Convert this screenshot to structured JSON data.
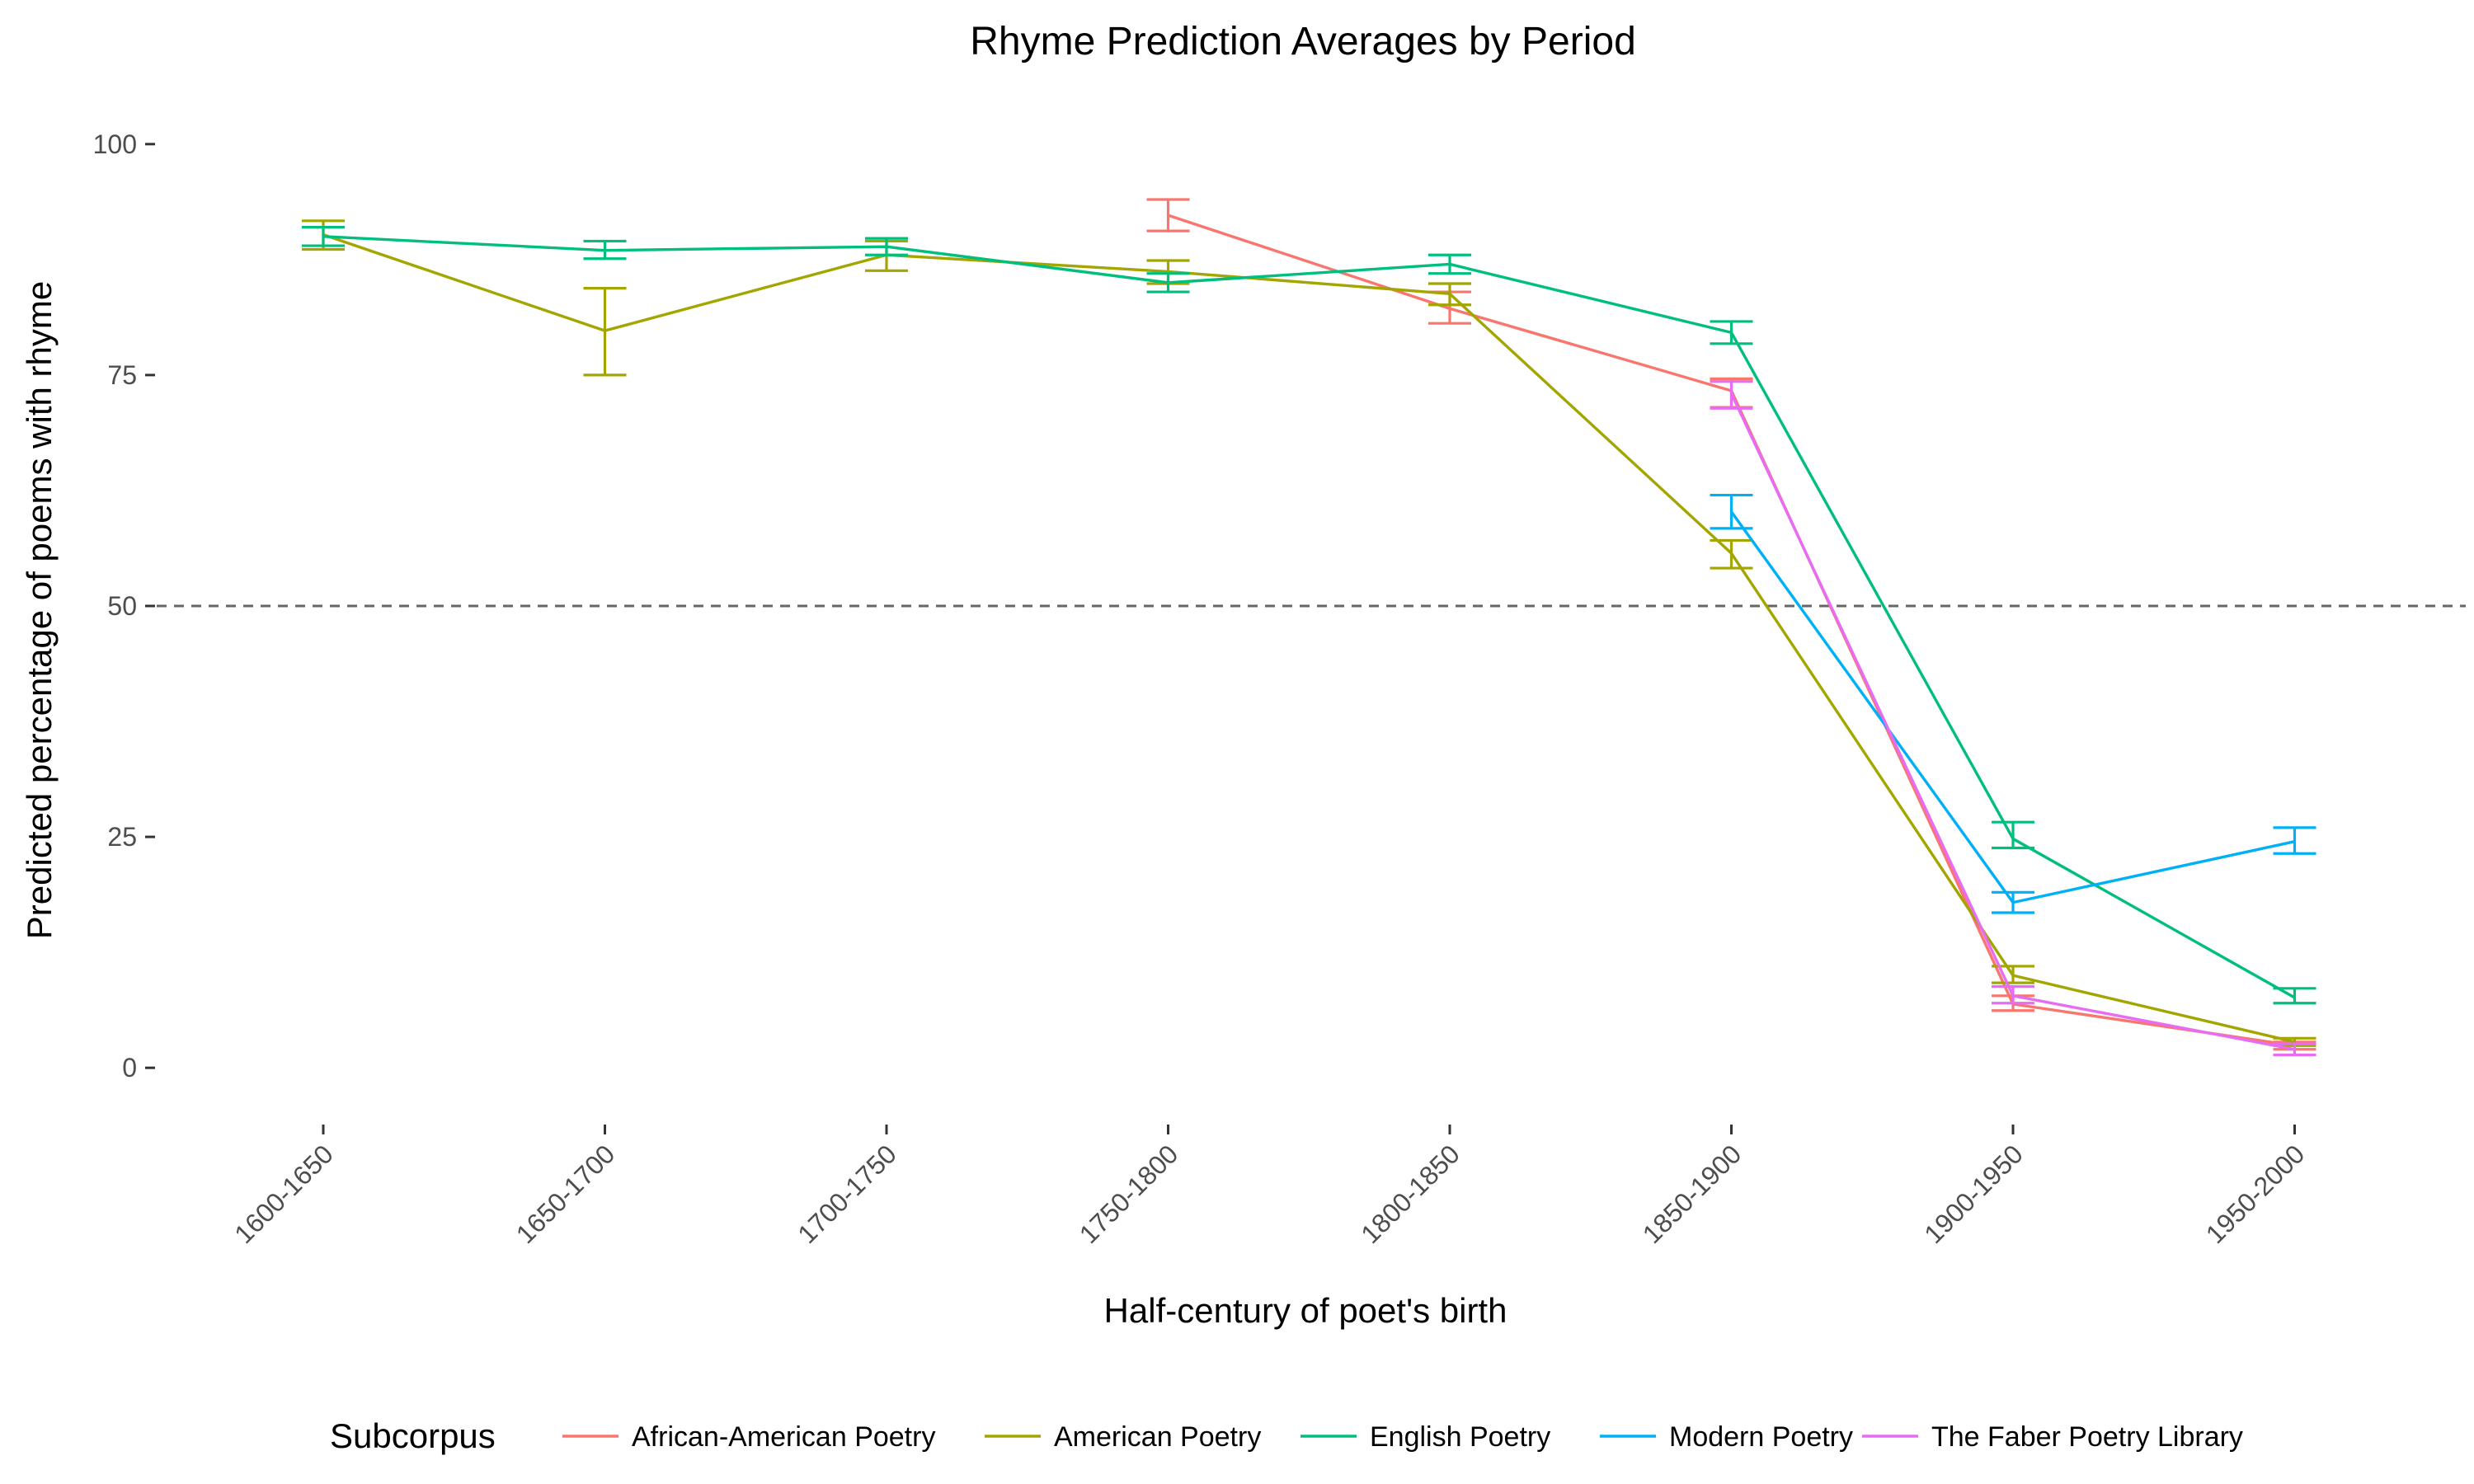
{
  "chart_data": {
    "type": "line",
    "title": "Rhyme Prediction Averages by Period",
    "xlabel": "Half-century of poet's birth",
    "ylabel": "Predicted percentage of poems with rhyme",
    "categories": [
      "1600-1650",
      "1650-1700",
      "1700-1750",
      "1750-1800",
      "1800-1850",
      "1850-1900",
      "1900-1950",
      "1950-2000"
    ],
    "yticks": [
      0,
      25,
      50,
      75,
      100
    ],
    "ylim": [
      -4,
      104
    ],
    "reference_line": 50,
    "grid": false,
    "legend": {
      "title": "Subcorpus",
      "position": "bottom"
    },
    "series": [
      {
        "name": "African-American Poetry",
        "color": "#F8766D",
        "points": [
          {
            "x": "1750-1800",
            "y": 92.3,
            "lo": 90.6,
            "hi": 94.0
          },
          {
            "x": "1800-1850",
            "y": 82.2,
            "lo": 80.6,
            "hi": 84.0
          },
          {
            "x": "1850-1900",
            "y": 73.3,
            "lo": 71.5,
            "hi": 74.6
          },
          {
            "x": "1900-1950",
            "y": 6.9,
            "lo": 6.2,
            "hi": 7.8
          },
          {
            "x": "1950-2000",
            "y": 2.4,
            "lo": 2.0,
            "hi": 2.8
          }
        ]
      },
      {
        "name": "American Poetry",
        "color": "#A3A500",
        "points": [
          {
            "x": "1600-1650",
            "y": 90.2,
            "lo": 88.6,
            "hi": 91.7
          },
          {
            "x": "1650-1700",
            "y": 79.8,
            "lo": 75.0,
            "hi": 84.4
          },
          {
            "x": "1700-1750",
            "y": 88.0,
            "lo": 86.3,
            "hi": 89.5
          },
          {
            "x": "1750-1800",
            "y": 86.2,
            "lo": 84.9,
            "hi": 87.4
          },
          {
            "x": "1800-1850",
            "y": 83.8,
            "lo": 82.6,
            "hi": 84.9
          },
          {
            "x": "1850-1900",
            "y": 55.7,
            "lo": 54.1,
            "hi": 57.1
          },
          {
            "x": "1900-1950",
            "y": 10.0,
            "lo": 9.2,
            "hi": 11.0
          },
          {
            "x": "1950-2000",
            "y": 2.8,
            "lo": 2.4,
            "hi": 3.2
          }
        ]
      },
      {
        "name": "English Poetry",
        "color": "#00BF7D",
        "points": [
          {
            "x": "1600-1650",
            "y": 90.0,
            "lo": 89.0,
            "hi": 91.0
          },
          {
            "x": "1650-1700",
            "y": 88.5,
            "lo": 87.6,
            "hi": 89.5
          },
          {
            "x": "1700-1750",
            "y": 88.9,
            "lo": 88.0,
            "hi": 89.8
          },
          {
            "x": "1750-1800",
            "y": 85.0,
            "lo": 84.0,
            "hi": 86.0
          },
          {
            "x": "1800-1850",
            "y": 87.0,
            "lo": 86.0,
            "hi": 88.0
          },
          {
            "x": "1850-1900",
            "y": 79.6,
            "lo": 78.4,
            "hi": 80.8
          },
          {
            "x": "1900-1950",
            "y": 24.8,
            "lo": 23.8,
            "hi": 26.6
          },
          {
            "x": "1950-2000",
            "y": 7.6,
            "lo": 7.0,
            "hi": 8.6
          }
        ]
      },
      {
        "name": "Modern Poetry",
        "color": "#00B0F6",
        "points": [
          {
            "x": "1850-1900",
            "y": 60.2,
            "lo": 58.4,
            "hi": 62.0
          },
          {
            "x": "1900-1950",
            "y": 17.9,
            "lo": 16.8,
            "hi": 19.0
          },
          {
            "x": "1950-2000",
            "y": 24.5,
            "lo": 23.2,
            "hi": 26.0
          }
        ]
      },
      {
        "name": "The Faber Poetry Library",
        "color": "#E76BF3",
        "points": [
          {
            "x": "1850-1900",
            "y": 73.0,
            "lo": 71.4,
            "hi": 74.3
          },
          {
            "x": "1900-1950",
            "y": 7.8,
            "lo": 7.0,
            "hi": 8.8
          },
          {
            "x": "1950-2000",
            "y": 2.0,
            "lo": 1.4,
            "hi": 2.6
          }
        ]
      }
    ]
  }
}
